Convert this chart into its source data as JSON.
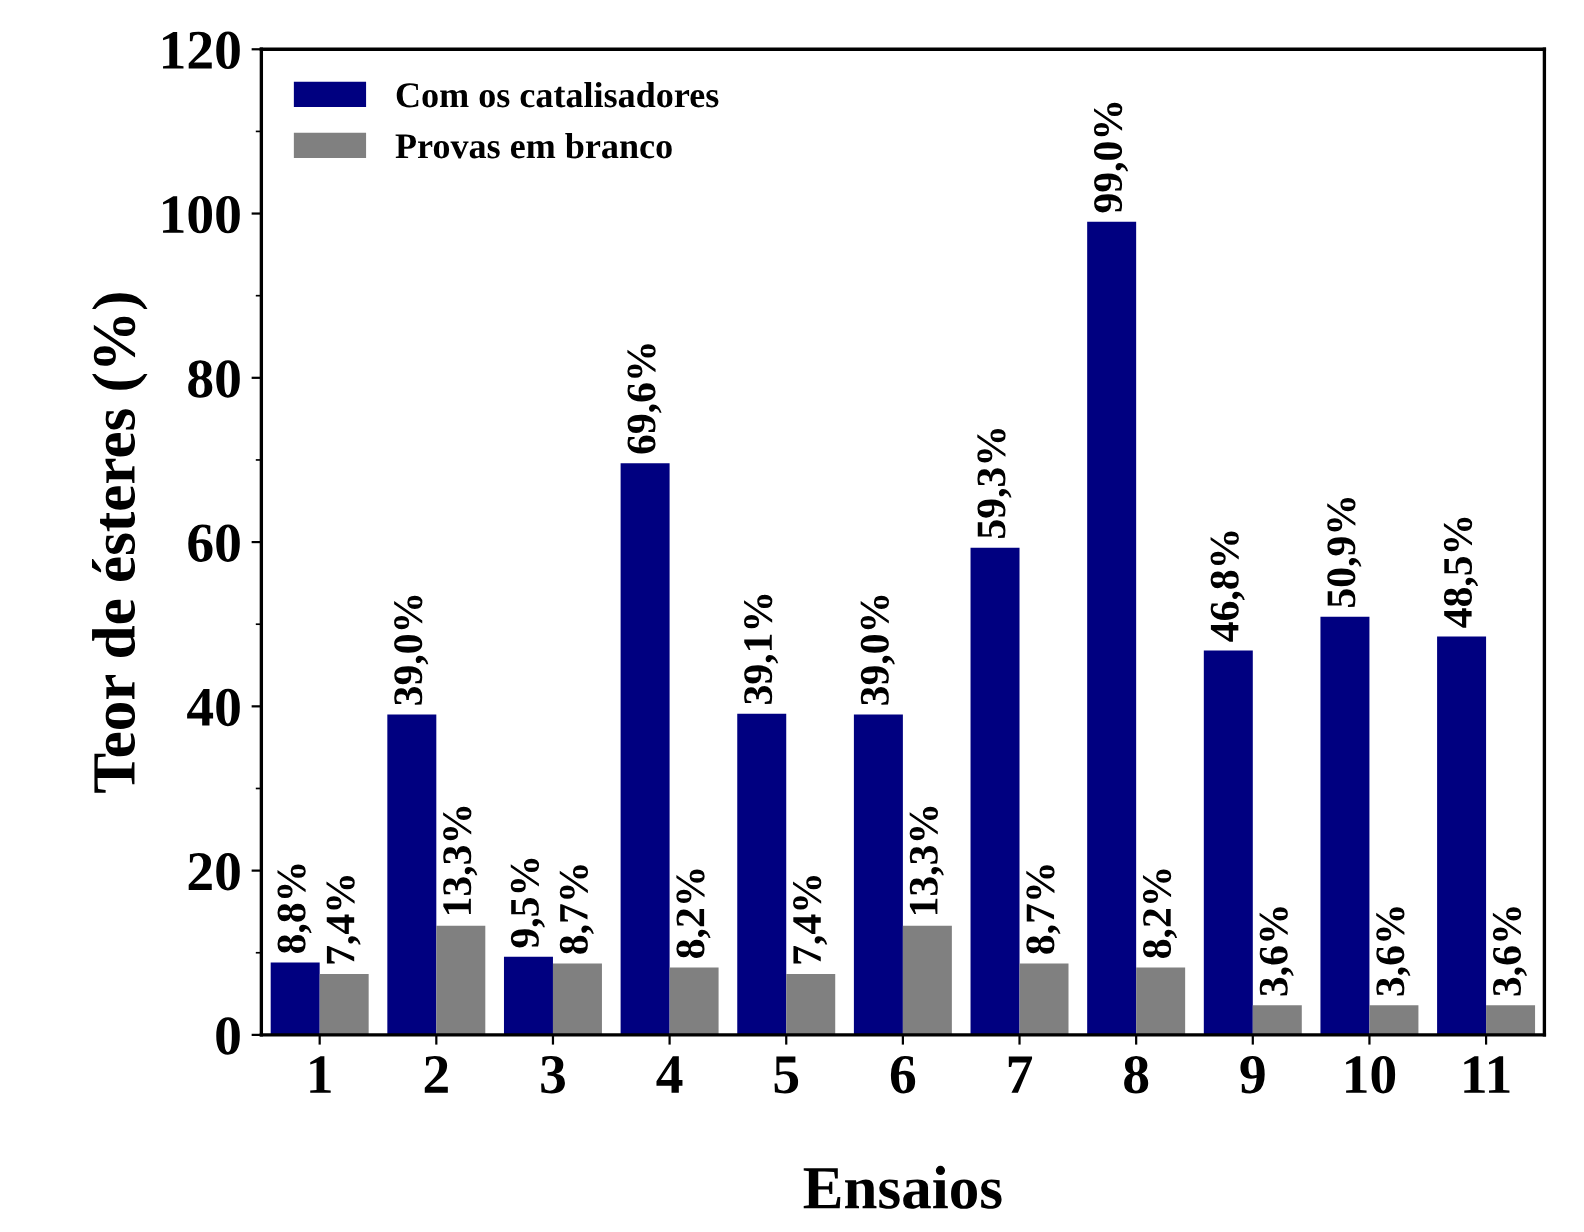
{
  "chart_data": {
    "type": "bar",
    "xlabel": "Ensaios",
    "ylabel": "Teor de ésteres (%)",
    "categories": [
      "1",
      "2",
      "3",
      "4",
      "5",
      "6",
      "7",
      "8",
      "9",
      "10",
      "11"
    ],
    "series": [
      {
        "name": "Com os catalisadores",
        "color": "#000080",
        "values": [
          8.8,
          39.0,
          9.5,
          69.6,
          39.1,
          39.0,
          59.3,
          99.0,
          46.8,
          50.9,
          48.5
        ],
        "value_labels": [
          "8,8%",
          "39,0%",
          "9,5%",
          "69,6%",
          "39,1%",
          "39,0%",
          "59,3%",
          "99,0%",
          "46,8%",
          "50,9%",
          "48,5%"
        ]
      },
      {
        "name": "Provas em branco",
        "color": "#808080",
        "values": [
          7.4,
          13.3,
          8.7,
          8.2,
          7.4,
          13.3,
          8.7,
          8.2,
          3.6,
          3.6,
          3.6
        ],
        "value_labels": [
          "7,4%",
          "13,3%",
          "8,7%",
          "8,2%",
          "7,4%",
          "13,3%",
          "8,7%",
          "8,2%",
          "3,6%",
          "3,6%",
          "3,6%"
        ]
      }
    ],
    "ylim": [
      0,
      120
    ],
    "yticks": [
      0,
      20,
      40,
      60,
      80,
      100,
      120
    ],
    "grid": false,
    "legend": "top left"
  }
}
